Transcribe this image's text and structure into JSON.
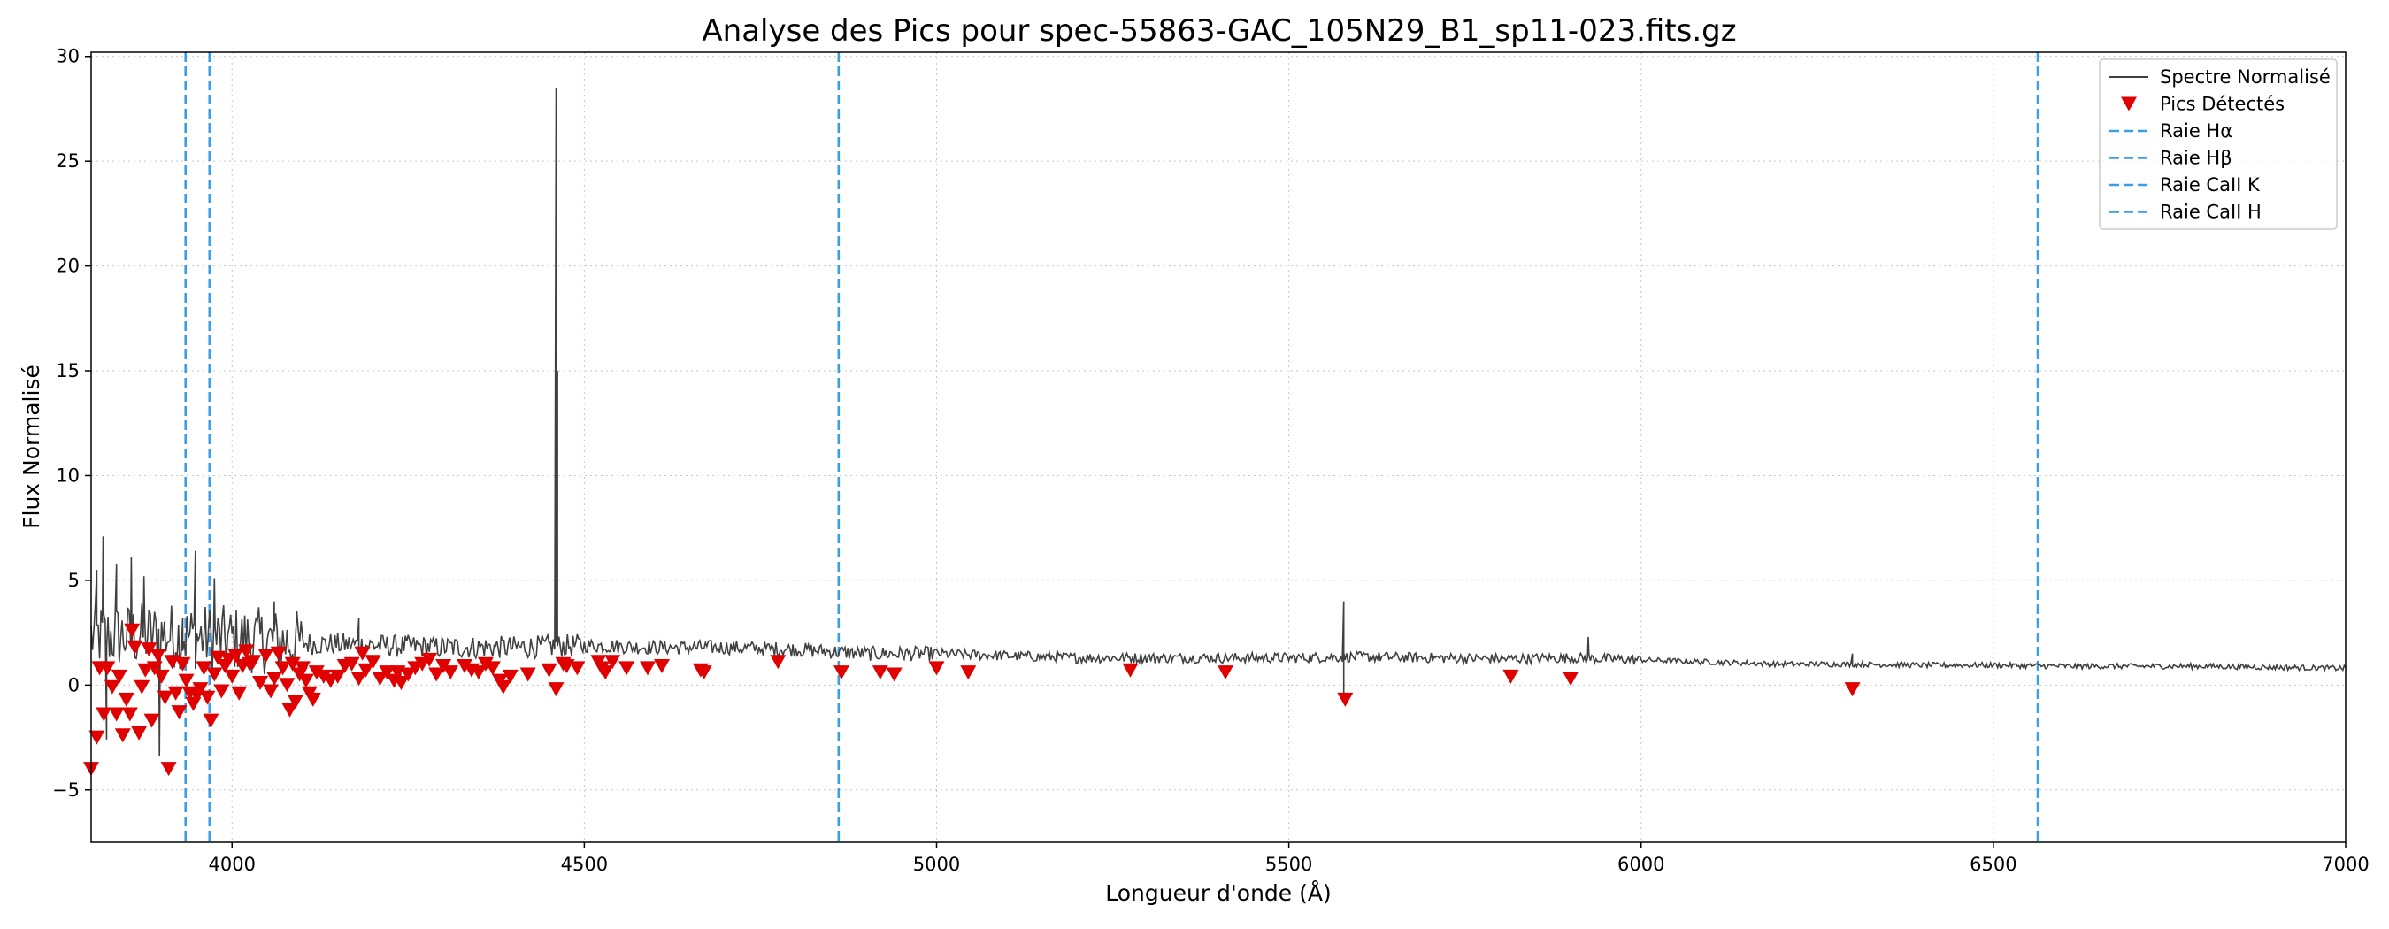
{
  "chart_data": {
    "type": "line",
    "title": "Analyse des Pics pour spec-55863-GAC_105N29_B1_sp11-023.fits.gz",
    "xlabel": "Longueur d'onde (Å)",
    "ylabel": "Flux Normalisé",
    "xlim": [
      3800,
      7000
    ],
    "ylim": [
      -7.5,
      30.2
    ],
    "xticks": [
      4000,
      4500,
      5000,
      5500,
      6000,
      6500,
      7000
    ],
    "yticks": [
      -5,
      0,
      5,
      10,
      15,
      20,
      25,
      30
    ],
    "xtick_labels": [
      "4000",
      "4500",
      "5000",
      "5500",
      "6000",
      "6500",
      "7000"
    ],
    "ytick_labels": [
      "−5",
      "0",
      "5",
      "10",
      "15",
      "20",
      "25",
      "30"
    ],
    "grid": true,
    "legend_position": "top-right",
    "colors": {
      "spectrum": "#404040",
      "peaks": "#e00000",
      "lines": "#3a9ee4"
    },
    "spectrum": {
      "name": "Spectre Normalisé",
      "anchors": [
        [
          3800,
          2.3
        ],
        [
          3900,
          2.4
        ],
        [
          4000,
          2.2
        ],
        [
          4100,
          2.0
        ],
        [
          4200,
          1.9
        ],
        [
          4300,
          1.8
        ],
        [
          4400,
          1.8
        ],
        [
          4500,
          1.9
        ],
        [
          4600,
          1.8
        ],
        [
          4700,
          1.8
        ],
        [
          4800,
          1.7
        ],
        [
          4900,
          1.5
        ],
        [
          5000,
          1.5
        ],
        [
          5100,
          1.4
        ],
        [
          5200,
          1.3
        ],
        [
          5300,
          1.3
        ],
        [
          5400,
          1.3
        ],
        [
          5500,
          1.3
        ],
        [
          5600,
          1.35
        ],
        [
          5700,
          1.3
        ],
        [
          5800,
          1.25
        ],
        [
          5900,
          1.3
        ],
        [
          6000,
          1.2
        ],
        [
          6100,
          1.1
        ],
        [
          6200,
          1.0
        ],
        [
          6300,
          1.0
        ],
        [
          6400,
          0.95
        ],
        [
          6500,
          0.95
        ],
        [
          6600,
          0.9
        ],
        [
          6700,
          0.9
        ],
        [
          6800,
          0.9
        ],
        [
          6900,
          0.85
        ],
        [
          7000,
          0.8
        ]
      ],
      "spikes": [
        [
          3808,
          5.5
        ],
        [
          3817,
          7.1
        ],
        [
          3822,
          -2.6
        ],
        [
          3836,
          5.8
        ],
        [
          3857,
          6.1
        ],
        [
          3875,
          5.2
        ],
        [
          3897,
          -3.4
        ],
        [
          3930,
          3.2
        ],
        [
          3948,
          6.4
        ],
        [
          3975,
          5.1
        ],
        [
          4060,
          4.0
        ],
        [
          4180,
          3.2
        ],
        [
          4460,
          28.5
        ],
        [
          4462,
          15.0
        ],
        [
          5578,
          4.0
        ],
        [
          5578,
          -0.7
        ],
        [
          5925,
          2.3
        ],
        [
          6300,
          1.5
        ]
      ]
    },
    "peaks": {
      "name": "Pics Détectés",
      "points": [
        [
          3800,
          -4.0
        ],
        [
          3808,
          -2.5
        ],
        [
          3812,
          0.8
        ],
        [
          3818,
          -1.4
        ],
        [
          3823,
          0.8
        ],
        [
          3830,
          -0.1
        ],
        [
          3836,
          -1.4
        ],
        [
          3840,
          0.4
        ],
        [
          3845,
          -2.4
        ],
        [
          3850,
          -0.7
        ],
        [
          3855,
          -1.4
        ],
        [
          3858,
          2.6
        ],
        [
          3862,
          1.8
        ],
        [
          3868,
          -2.3
        ],
        [
          3872,
          -0.1
        ],
        [
          3877,
          0.7
        ],
        [
          3882,
          1.7
        ],
        [
          3886,
          -1.7
        ],
        [
          3890,
          0.8
        ],
        [
          3895,
          1.4
        ],
        [
          3900,
          0.4
        ],
        [
          3905,
          -0.6
        ],
        [
          3910,
          -4.0
        ],
        [
          3915,
          1.1
        ],
        [
          3920,
          -0.4
        ],
        [
          3925,
          -1.3
        ],
        [
          3930,
          1.0
        ],
        [
          3935,
          0.2
        ],
        [
          3940,
          -0.4
        ],
        [
          3945,
          -0.9
        ],
        [
          3950,
          -0.5
        ],
        [
          3955,
          -0.2
        ],
        [
          3960,
          0.8
        ],
        [
          3965,
          -0.6
        ],
        [
          3970,
          -1.7
        ],
        [
          3975,
          0.5
        ],
        [
          3980,
          1.3
        ],
        [
          3985,
          -0.3
        ],
        [
          3990,
          0.9
        ],
        [
          3995,
          1.2
        ],
        [
          4000,
          0.4
        ],
        [
          4005,
          1.4
        ],
        [
          4010,
          -0.4
        ],
        [
          4015,
          0.9
        ],
        [
          4020,
          1.6
        ],
        [
          4025,
          1.0
        ],
        [
          4030,
          1.1
        ],
        [
          4040,
          0.1
        ],
        [
          4048,
          1.4
        ],
        [
          4055,
          -0.3
        ],
        [
          4060,
          0.3
        ],
        [
          4066,
          1.5
        ],
        [
          4072,
          0.8
        ],
        [
          4078,
          0.0
        ],
        [
          4082,
          -1.2
        ],
        [
          4086,
          1.0
        ],
        [
          4090,
          -0.8
        ],
        [
          4096,
          0.5
        ],
        [
          4100,
          0.8
        ],
        [
          4105,
          0.2
        ],
        [
          4110,
          -0.4
        ],
        [
          4115,
          -0.7
        ],
        [
          4120,
          0.6
        ],
        [
          4130,
          0.4
        ],
        [
          4140,
          0.2
        ],
        [
          4150,
          0.4
        ],
        [
          4160,
          0.9
        ],
        [
          4170,
          1.0
        ],
        [
          4180,
          0.3
        ],
        [
          4185,
          1.5
        ],
        [
          4190,
          0.7
        ],
        [
          4200,
          1.1
        ],
        [
          4210,
          0.3
        ],
        [
          4220,
          0.6
        ],
        [
          4230,
          0.2
        ],
        [
          4235,
          0.6
        ],
        [
          4240,
          0.1
        ],
        [
          4250,
          0.5
        ],
        [
          4260,
          0.8
        ],
        [
          4270,
          1.0
        ],
        [
          4280,
          1.2
        ],
        [
          4290,
          0.5
        ],
        [
          4300,
          0.9
        ],
        [
          4310,
          0.6
        ],
        [
          4330,
          0.9
        ],
        [
          4340,
          0.7
        ],
        [
          4350,
          0.6
        ],
        [
          4360,
          1.0
        ],
        [
          4370,
          0.8
        ],
        [
          4380,
          0.2
        ],
        [
          4385,
          -0.1
        ],
        [
          4395,
          0.4
        ],
        [
          4420,
          0.5
        ],
        [
          4450,
          0.7
        ],
        [
          4460,
          -0.2
        ],
        [
          4470,
          1.0
        ],
        [
          4475,
          0.9
        ],
        [
          4490,
          0.8
        ],
        [
          4520,
          1.1
        ],
        [
          4525,
          0.8
        ],
        [
          4530,
          0.6
        ],
        [
          4540,
          1.1
        ],
        [
          4560,
          0.8
        ],
        [
          4590,
          0.8
        ],
        [
          4610,
          0.9
        ],
        [
          4665,
          0.7
        ],
        [
          4670,
          0.6
        ],
        [
          4775,
          1.1
        ],
        [
          4865,
          0.6
        ],
        [
          4920,
          0.6
        ],
        [
          4940,
          0.5
        ],
        [
          5000,
          0.8
        ],
        [
          5045,
          0.6
        ],
        [
          5275,
          0.7
        ],
        [
          5410,
          0.6
        ],
        [
          5580,
          -0.7
        ],
        [
          5815,
          0.4
        ],
        [
          5900,
          0.3
        ],
        [
          6300,
          -0.2
        ]
      ]
    },
    "reference_lines": [
      {
        "name": "Raie Hα",
        "x": 6563
      },
      {
        "name": "Raie Hβ",
        "x": 4861
      },
      {
        "name": "Raie CaII K",
        "x": 3934
      },
      {
        "name": "Raie CaII H",
        "x": 3968
      }
    ],
    "legend": [
      {
        "label": "Spectre Normalisé",
        "kind": "line"
      },
      {
        "label": "Pics Détectés",
        "kind": "marker"
      },
      {
        "label": "Raie Hα",
        "kind": "dashed"
      },
      {
        "label": "Raie Hβ",
        "kind": "dashed"
      },
      {
        "label": "Raie CaII K",
        "kind": "dashed"
      },
      {
        "label": "Raie CaII H",
        "kind": "dashed"
      }
    ]
  }
}
